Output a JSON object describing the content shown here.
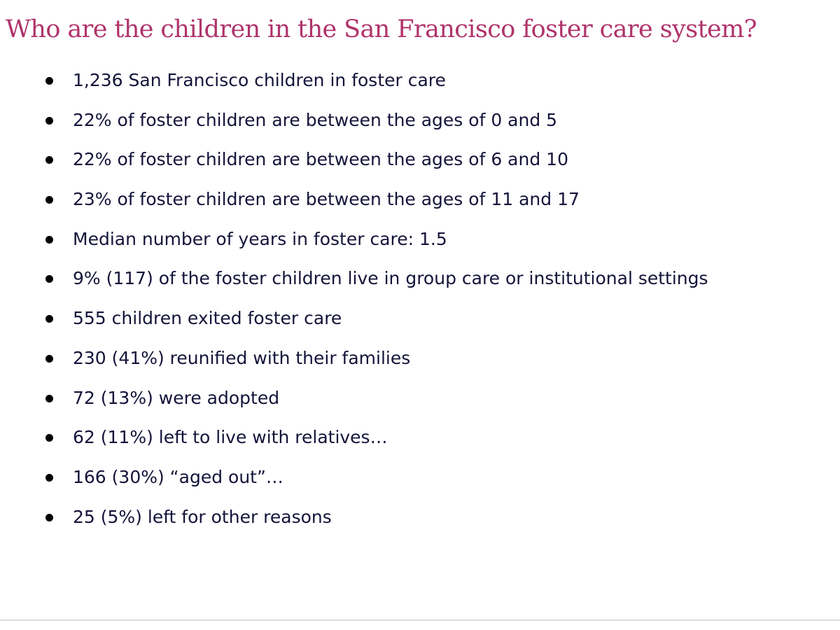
{
  "title": "Who are the children in the San Francisco foster care system?",
  "facts": [
    "1,236 San Francisco children in foster care",
    "22% of foster children are between the ages of 0 and 5",
    "22% of foster children are between the ages of 6 and 10",
    "23% of foster children are between the ages of 11 and 17",
    "Median number of years in foster care: 1.5",
    "9% (117) of the foster children live in group care or institutional settings",
    "555 children exited foster care",
    "230 (41%) reunified with their families",
    "72 (13%) were adopted",
    "62 (11%) left to live with relatives…",
    "166 (30%) “aged out”…",
    "25 (5%) left for other reasons"
  ],
  "colors": {
    "title": "#b0336b",
    "text": "#14143a",
    "bullet": "#000000",
    "rule": "#dcdcdc"
  }
}
